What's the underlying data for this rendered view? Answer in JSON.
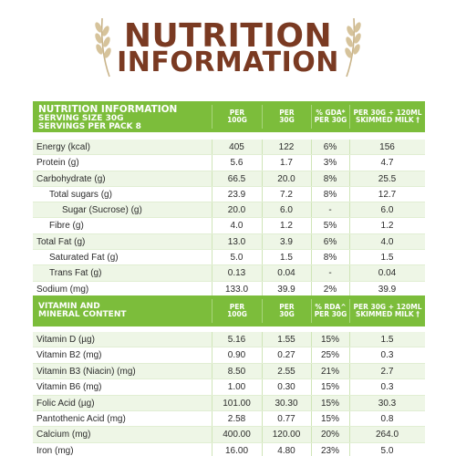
{
  "header": {
    "line1": "NUTRITION",
    "line2": "INFORMATION"
  },
  "table1": {
    "head_title": "NUTRITION INFORMATION",
    "head_line2": "SERVING SIZE 30G",
    "head_line3": "SERVINGS PER PACK 8",
    "columns": [
      [
        "PER",
        "100G"
      ],
      [
        "PER",
        "30G"
      ],
      [
        "% GDA*",
        "PER 30G"
      ],
      [
        "PER 30G + 120ML",
        "SKIMMED MILK †"
      ]
    ],
    "rows": [
      {
        "name": "Energy (kcal)",
        "indent": 0,
        "values": [
          "405",
          "122",
          "6%",
          "156"
        ]
      },
      {
        "name": "Protein (g)",
        "indent": 0,
        "values": [
          "5.6",
          "1.7",
          "3%",
          "4.7"
        ]
      },
      {
        "name": "Carbohydrate (g)",
        "indent": 0,
        "values": [
          "66.5",
          "20.0",
          "8%",
          "25.5"
        ]
      },
      {
        "name": "Total sugars (g)",
        "indent": 1,
        "values": [
          "23.9",
          "7.2",
          "8%",
          "12.7"
        ]
      },
      {
        "name": "Sugar (Sucrose) (g)",
        "indent": 2,
        "values": [
          "20.0",
          "6.0",
          "-",
          "6.0"
        ]
      },
      {
        "name": "Fibre (g)",
        "indent": 1,
        "values": [
          "4.0",
          "1.2",
          "5%",
          "1.2"
        ]
      },
      {
        "name": "Total Fat (g)",
        "indent": 0,
        "values": [
          "13.0",
          "3.9",
          "6%",
          "4.0"
        ]
      },
      {
        "name": "Saturated Fat (g)",
        "indent": 1,
        "values": [
          "5.0",
          "1.5",
          "8%",
          "1.5"
        ]
      },
      {
        "name": "Trans Fat (g)",
        "indent": 1,
        "values": [
          "0.13",
          "0.04",
          "-",
          "0.04"
        ]
      },
      {
        "name": "Sodium (mg)",
        "indent": 0,
        "values": [
          "133.0",
          "39.9",
          "2%",
          "39.9"
        ]
      }
    ]
  },
  "table2": {
    "head_line1": "VITAMIN AND",
    "head_line2": "MINERAL CONTENT",
    "columns": [
      [
        "PER",
        "100G"
      ],
      [
        "PER",
        "30G"
      ],
      [
        "% RDA^",
        "PER 30G"
      ],
      [
        "PER 30G + 120ML",
        "SKIMMED MILK †"
      ]
    ],
    "rows": [
      {
        "name": "Vitamin D (µg)",
        "values": [
          "5.16",
          "1.55",
          "15%",
          "1.5"
        ]
      },
      {
        "name": "Vitamin B2 (mg)",
        "values": [
          "0.90",
          "0.27",
          "25%",
          "0.3"
        ]
      },
      {
        "name": "Vitamin B3 (Niacin) (mg)",
        "values": [
          "8.50",
          "2.55",
          "21%",
          "2.7"
        ]
      },
      {
        "name": "Vitamin B6 (mg)",
        "values": [
          "1.00",
          "0.30",
          "15%",
          "0.3"
        ]
      },
      {
        "name": "Folic Acid (µg)",
        "values": [
          "101.00",
          "30.30",
          "15%",
          "30.3"
        ]
      },
      {
        "name": "Pantothenic Acid (mg)",
        "values": [
          "2.58",
          "0.77",
          "15%",
          "0.8"
        ]
      },
      {
        "name": "Calcium (mg)",
        "values": [
          "400.00",
          "120.00",
          "20%",
          "264.0"
        ]
      },
      {
        "name": "Iron (mg)",
        "values": [
          "16.00",
          "4.80",
          "23%",
          "5.0"
        ]
      }
    ]
  },
  "colors": {
    "title_brown": "#7a3a22",
    "header_green": "#7cbd3b",
    "row_shade": "#eef6e6"
  }
}
